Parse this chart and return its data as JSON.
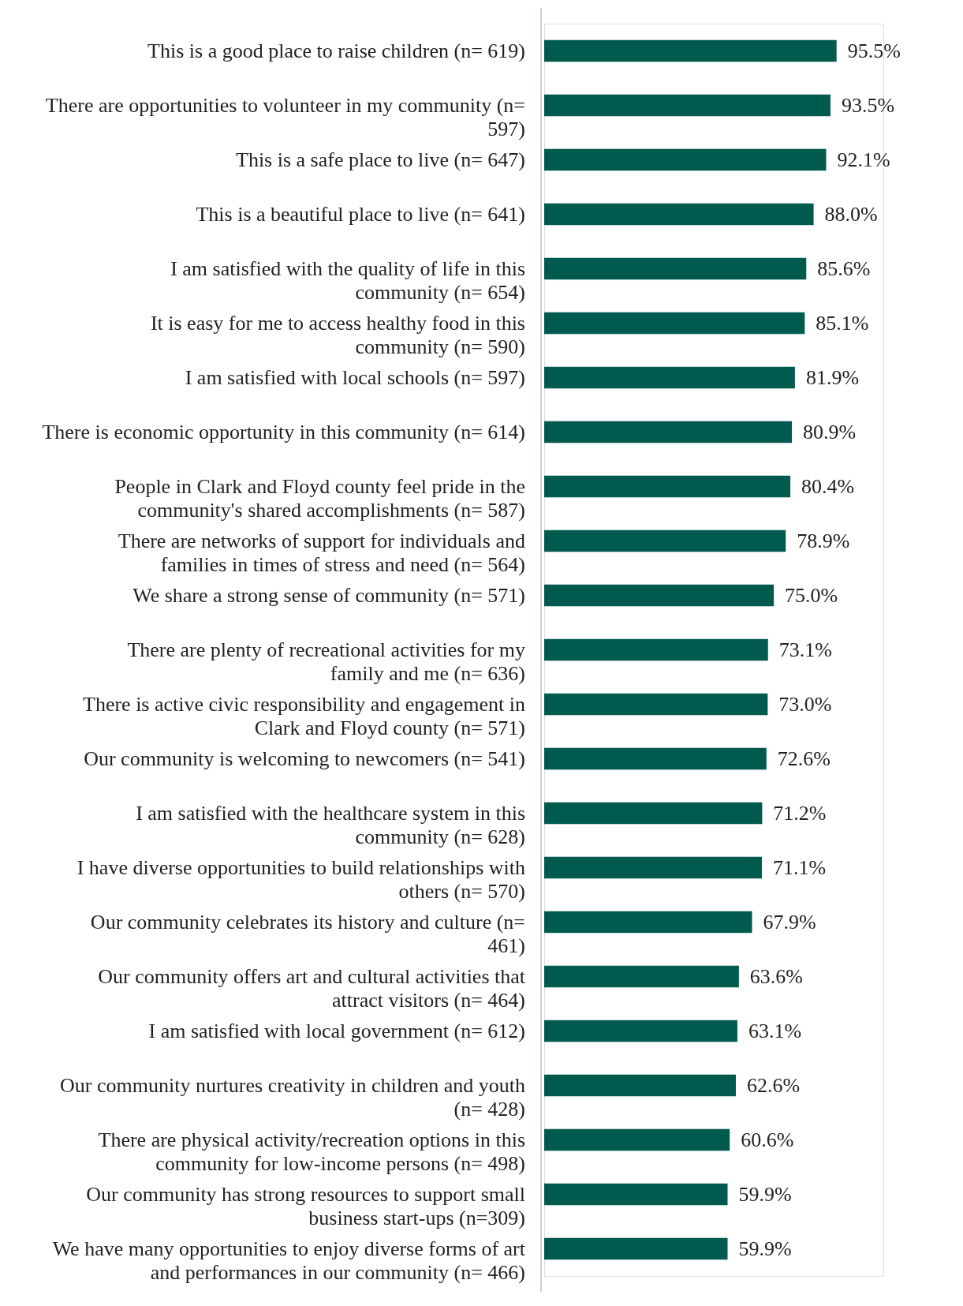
{
  "chart_data": {
    "type": "bar",
    "orientation": "horizontal",
    "data_labels": true,
    "categories": [
      "This is a good place to raise children (n= 619)",
      "There are opportunities to volunteer in my community (n= 597)",
      "This is a safe place to live (n= 647)",
      "This is a beautiful place to live (n= 641)",
      "I am satisfied with the quality of life in this community (n= 654)",
      "It is easy for me to access healthy food in this community (n= 590)",
      "I am satisfied with local schools (n= 597)",
      "There is economic opportunity in this community (n= 614)",
      "People in Clark and Floyd county feel pride in the community's shared accomplishments (n= 587)",
      "There are networks of support for individuals and families in times of stress and need (n= 564)",
      "We share a strong sense of community (n= 571)",
      "There are plenty of recreational activities for my family and me (n= 636)",
      "There is active civic responsibility and engagement in Clark and Floyd county (n= 571)",
      "Our community is welcoming to newcomers (n= 541)",
      "I am satisfied with the healthcare system in this community (n= 628)",
      "I have diverse opportunities to build relationships with others (n= 570)",
      "Our community celebrates its history and culture (n= 461)",
      "Our community offers art and cultural activities that attract visitors (n= 464)",
      "I am satisfied with local government (n= 612)",
      "Our community nurtures creativity in children and youth (n= 428)",
      "There are physical activity/recreation options in this community for low-income persons (n= 498)",
      "Our community has strong resources to support small business start-ups (n=309)",
      "We have many opportunities to enjoy diverse forms of art and performances in our community (n= 466)"
    ],
    "values": [
      95.5,
      93.5,
      92.1,
      88.0,
      85.6,
      85.1,
      81.9,
      80.9,
      80.4,
      78.9,
      75.0,
      73.1,
      73.0,
      72.6,
      71.2,
      71.1,
      67.9,
      63.6,
      63.1,
      62.6,
      60.6,
      59.9,
      59.9
    ],
    "value_labels": [
      "95.5%",
      "93.5%",
      "92.1%",
      "88.0%",
      "85.6%",
      "85.1%",
      "81.9%",
      "80.9%",
      "80.4%",
      "78.9%",
      "75.0%",
      "73.1%",
      "73.0%",
      "72.6%",
      "71.2%",
      "71.1%",
      "67.9%",
      "63.6%",
      "63.1%",
      "62.6%",
      "60.6%",
      "59.9%",
      "59.9%"
    ],
    "color": "#005a4e"
  }
}
